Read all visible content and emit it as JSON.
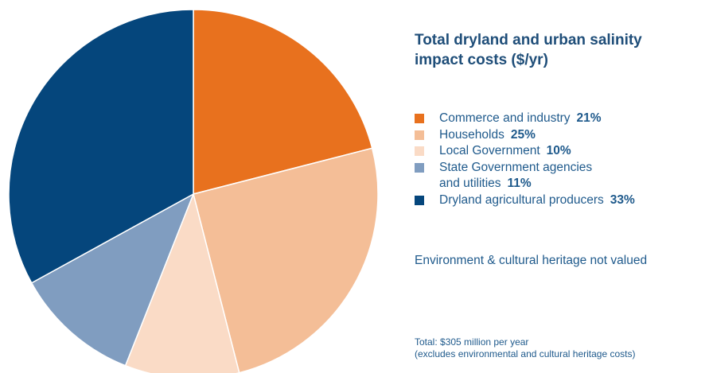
{
  "chart_data": {
    "type": "pie",
    "title": "Total dryland and urban salinity impact costs ($/yr)",
    "slices": [
      {
        "label": "Commerce and industry",
        "value": 21,
        "display": "21%",
        "color": "#e8711e",
        "label_line2": ""
      },
      {
        "label": "Households",
        "value": 25,
        "display": "25%",
        "color": "#f4be97",
        "label_line2": ""
      },
      {
        "label": "Local Government",
        "value": 10,
        "display": "10%",
        "color": "#fadbc6",
        "label_line2": ""
      },
      {
        "label": "State Government agencies",
        "value": 11,
        "display": "11%",
        "color": "#809dc0",
        "label_line2": "and utilities"
      },
      {
        "label": "Dryland agricultural producers",
        "value": 33,
        "display": "33%",
        "color": "#05467c",
        "label_line2": ""
      }
    ],
    "start_angle": "12 o'clock",
    "direction": "clockwise",
    "note": "Environment & cultural heritage not valued",
    "total_line1": "Total: $305 million per year",
    "total_line2": "(excludes environmental and cultural heritage costs)"
  }
}
